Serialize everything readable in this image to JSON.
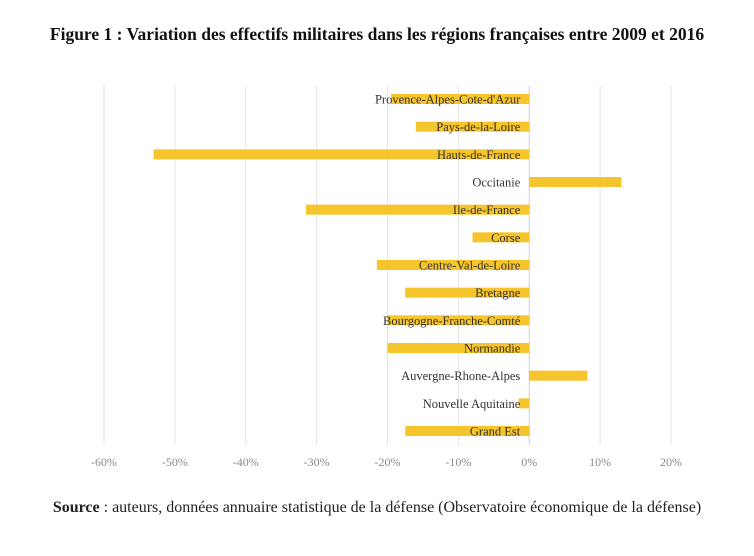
{
  "title": "Figure 1 : Variation des effectifs militaires dans les régions françaises entre 2009 et 2016",
  "source": {
    "label": "Source",
    "text": " : auteurs, données annuaire statistique de la défense (Observatoire économique de la défense)"
  },
  "colors": {
    "bar": "#F6C42B",
    "grid": "#e3e3e3",
    "axis": "#cfcfcf"
  },
  "chart_data": {
    "type": "bar",
    "orientation": "horizontal",
    "title": "Figure 1 : Variation des effectifs militaires dans les régions françaises entre 2009 et 2016",
    "categories": [
      "Provence-Alpes-Cote-d'Azur",
      "Pays-de-la-Loire",
      "Hauts-de-France",
      "Occitanie",
      "Ile-de-France",
      "Corse",
      "Centre-Val-de-Loire",
      "Bretagne",
      "Bourgogne-Franche-Comté",
      "Normandie",
      "Auvergne-Rhone-Alpes",
      "Nouvelle Aquitaine",
      "Grand Est"
    ],
    "values": [
      -0.195,
      -0.16,
      -0.53,
      0.13,
      -0.315,
      -0.08,
      -0.215,
      -0.175,
      -0.2,
      -0.2,
      0.082,
      -0.015,
      -0.175
    ],
    "xlim": [
      -0.6,
      0.2
    ],
    "xticks": [
      -0.6,
      -0.5,
      -0.4,
      -0.3,
      -0.2,
      -0.1,
      0,
      0.1,
      0.2
    ],
    "xtick_labels": [
      "-60%",
      "-50%",
      "-40%",
      "-30%",
      "-20%",
      "-10%",
      "0%",
      "10%",
      "20%"
    ],
    "grid": true,
    "legend": "none"
  }
}
